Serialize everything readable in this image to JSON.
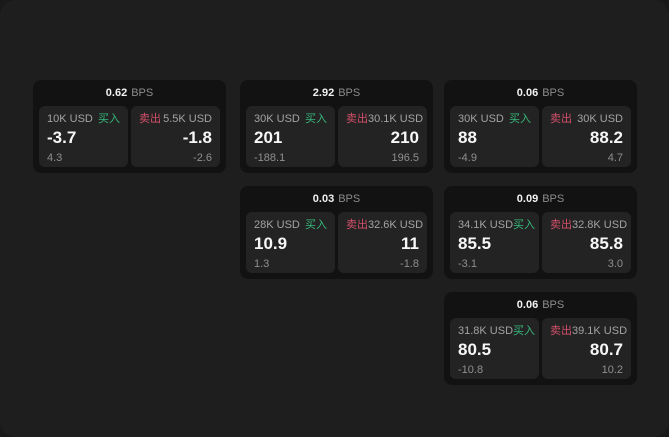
{
  "labels": {
    "bps": "BPS",
    "buy": "买入",
    "sell": "卖出"
  },
  "colors": {
    "buy_green": "#36b97c",
    "sell_red": "#d44f6a",
    "window_bg": "#1e1e1e",
    "card_bg": "#121212",
    "tile_bg": "#232323"
  },
  "cards": [
    {
      "bps": "0.62",
      "buy": {
        "amount": "10K USD",
        "price": "-3.7",
        "delta": "4.3"
      },
      "sell": {
        "amount": "5.5K USD",
        "price": "-1.8",
        "delta": "-2.6"
      }
    },
    {
      "bps": "2.92",
      "buy": {
        "amount": "30K USD",
        "price": "201",
        "delta": "-188.1"
      },
      "sell": {
        "amount": "30.1K USD",
        "price": "210",
        "delta": "196.5"
      }
    },
    {
      "bps": "0.06",
      "buy": {
        "amount": "30K USD",
        "price": "88",
        "delta": "-4.9"
      },
      "sell": {
        "amount": "30K USD",
        "price": "88.2",
        "delta": "4.7"
      }
    },
    {
      "bps": "0.03",
      "buy": {
        "amount": "28K USD",
        "price": "10.9",
        "delta": "1.3"
      },
      "sell": {
        "amount": "32.6K USD",
        "price": "11",
        "delta": "-1.8"
      }
    },
    {
      "bps": "0.09",
      "buy": {
        "amount": "34.1K USD",
        "price": "85.5",
        "delta": "-3.1"
      },
      "sell": {
        "amount": "32.8K USD",
        "price": "85.8",
        "delta": "3.0"
      }
    },
    {
      "bps": "0.06",
      "buy": {
        "amount": "31.8K USD",
        "price": "80.5",
        "delta": "-10.8"
      },
      "sell": {
        "amount": "39.1K USD",
        "price": "80.7",
        "delta": "10.2"
      }
    }
  ]
}
